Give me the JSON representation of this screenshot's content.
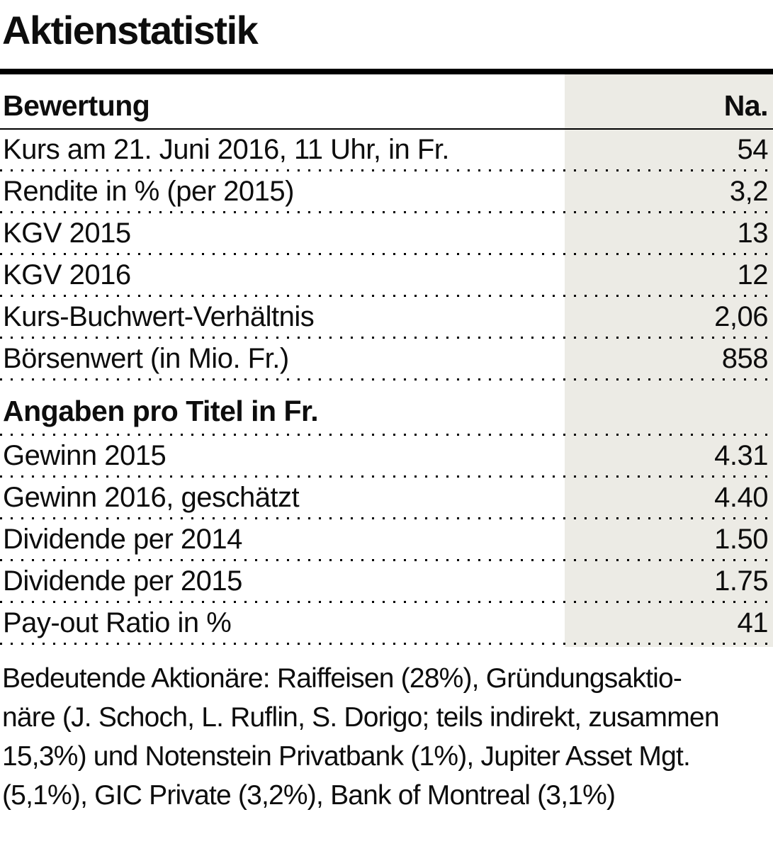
{
  "chart_data": {
    "type": "table",
    "title": "Aktienstatistik",
    "value_column_header": "Na.",
    "sections": [
      {
        "header": "Bewertung",
        "rows": [
          {
            "label": "Kurs am 21. Juni 2016, 11 Uhr, in Fr.",
            "value": "54"
          },
          {
            "label": "Rendite in % (per 2015)",
            "value": "3,2"
          },
          {
            "label": "KGV 2015",
            "value": "13"
          },
          {
            "label": "KGV 2016",
            "value": "12"
          },
          {
            "label": "Kurs-Buchwert-Verhältnis",
            "value": "2,06"
          },
          {
            "label": "Börsenwert (in Mio. Fr.)",
            "value": "858"
          }
        ]
      },
      {
        "header": "Angaben pro Titel in Fr.",
        "rows": [
          {
            "label": "Gewinn 2015",
            "value": "4.31"
          },
          {
            "label": "Gewinn 2016, geschätzt",
            "value": "4.40"
          },
          {
            "label": "Dividende per 2014",
            "value": "1.50"
          },
          {
            "label": "Dividende per 2015",
            "value": "1.75"
          },
          {
            "label": "Pay-out Ratio in %",
            "value": "41"
          }
        ]
      }
    ],
    "footnote": "Bedeutende Aktionäre: Raiffeisen (28%), Gründungsaktionäre (J. Schoch, L. Ruflin, S. Dorigo; teils indirekt, zusammen 15,3%) und Notenstein Privatbank (1%), Jupiter Asset Mgt. (5,1%), GIC Private (3,2%), Bank of Montreal (3,1%)",
    "footnote_lines": [
      "Bedeutende Aktionäre: Raiffeisen (28%), Gründungsaktio-",
      "näre (J. Schoch, L. Ruflin, S. Dorigo; teils indirekt, zusammen",
      "15,3%) und Notenstein Privatbank (1%), Jupiter Asset Mgt.",
      "(5,1%), GIC Private (3,2%), Bank of Montreal (3,1%)"
    ]
  },
  "colors": {
    "shade_column_bg": "#ECEBE5",
    "rule": "#000000",
    "text": "#0D0D0D"
  }
}
